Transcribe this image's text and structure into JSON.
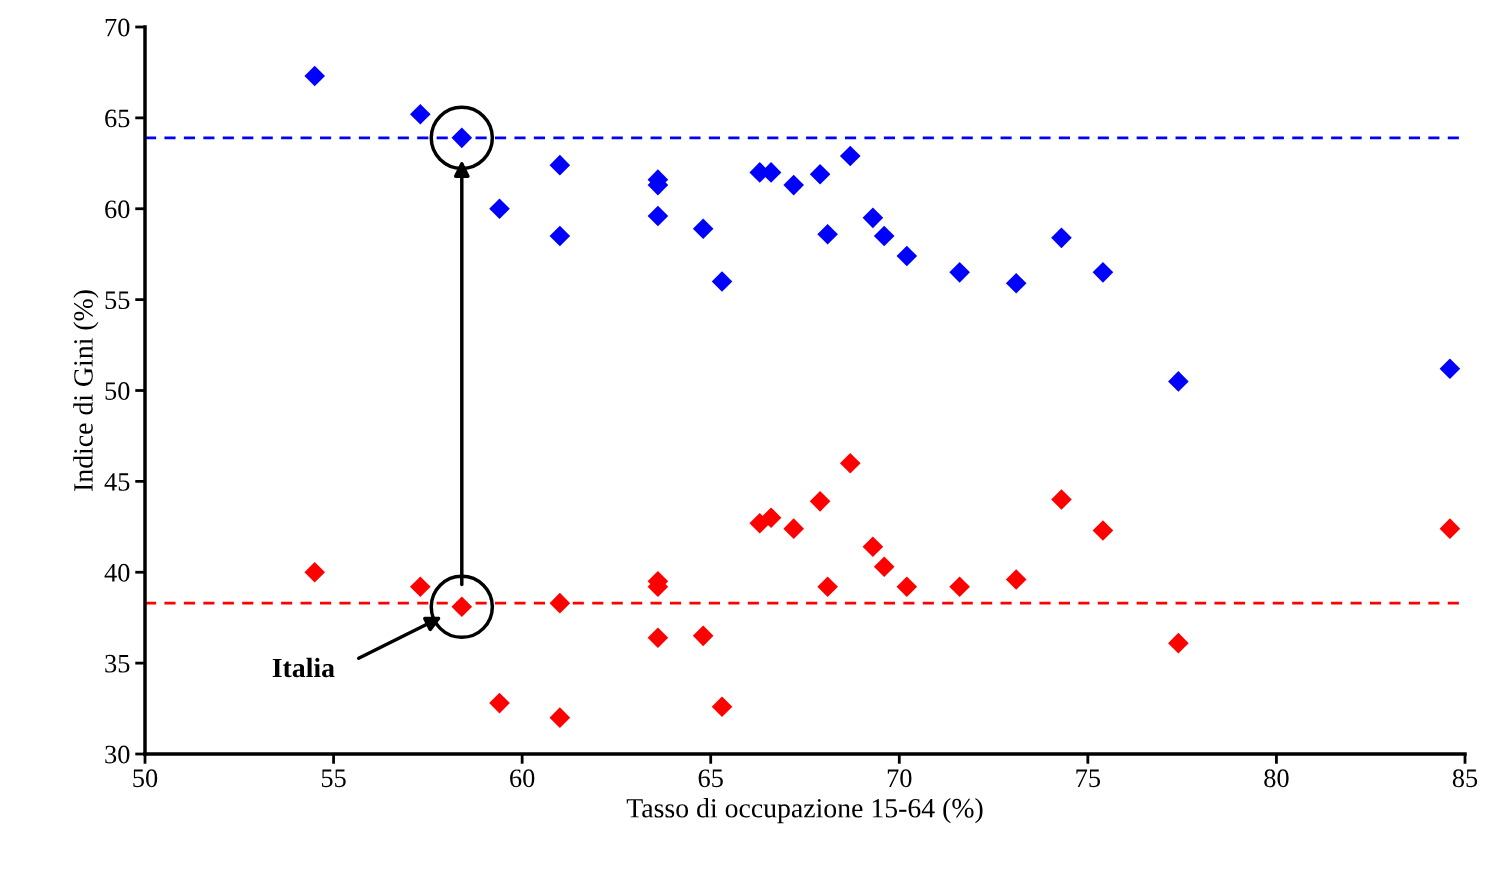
{
  "chart_data": {
    "type": "scatter",
    "xlabel": "Tasso di occupazione 15-64 (%)",
    "ylabel": "Indice di Gini (%)",
    "xlim": [
      50,
      85
    ],
    "xticks": [
      50,
      55,
      60,
      65,
      70,
      75,
      80,
      85
    ],
    "ylim": [
      30,
      70
    ],
    "yticks": [
      30,
      35,
      40,
      45,
      50,
      55,
      60,
      65,
      70
    ],
    "grid": false,
    "marker": "diamond",
    "series": [
      {
        "color": "#0000ff",
        "x": [
          54.5,
          57.3,
          58.4,
          59.4,
          61.0,
          61.0,
          63.6,
          63.6,
          63.6,
          64.8,
          65.3,
          66.3,
          66.6,
          67.2,
          67.9,
          68.1,
          68.7,
          69.3,
          69.6,
          70.2,
          71.6,
          73.1,
          74.3,
          75.4,
          77.4,
          84.6
        ],
        "values": [
          67.3,
          65.2,
          63.9,
          60.0,
          62.4,
          58.5,
          61.6,
          61.3,
          59.6,
          58.9,
          56.0,
          62.0,
          62.0,
          61.3,
          61.9,
          58.6,
          62.9,
          59.5,
          58.5,
          57.4,
          56.5,
          55.9,
          58.4,
          56.5,
          50.5,
          51.2
        ]
      },
      {
        "color": "#ff0000",
        "x": [
          54.5,
          57.3,
          58.4,
          59.4,
          61.0,
          61.0,
          63.6,
          63.6,
          63.6,
          64.8,
          65.3,
          66.3,
          66.6,
          67.2,
          67.9,
          68.1,
          68.7,
          69.3,
          69.6,
          70.2,
          71.6,
          73.1,
          74.3,
          75.4,
          77.4,
          84.6
        ],
        "values": [
          40.0,
          39.2,
          38.1,
          32.8,
          32.0,
          38.3,
          39.5,
          39.2,
          36.4,
          36.5,
          32.6,
          42.7,
          43.0,
          42.4,
          43.9,
          39.2,
          46.0,
          41.4,
          40.3,
          39.2,
          39.2,
          39.6,
          44.0,
          42.3,
          36.1,
          42.4
        ]
      }
    ],
    "ref_lines": [
      {
        "axis": "y",
        "value": 63.9,
        "color": "#0000ff",
        "line_style": "dashed"
      },
      {
        "axis": "y",
        "value": 38.3,
        "color": "#ff0000",
        "line_style": "dashed"
      }
    ],
    "annotations": [
      "Italia"
    ]
  }
}
